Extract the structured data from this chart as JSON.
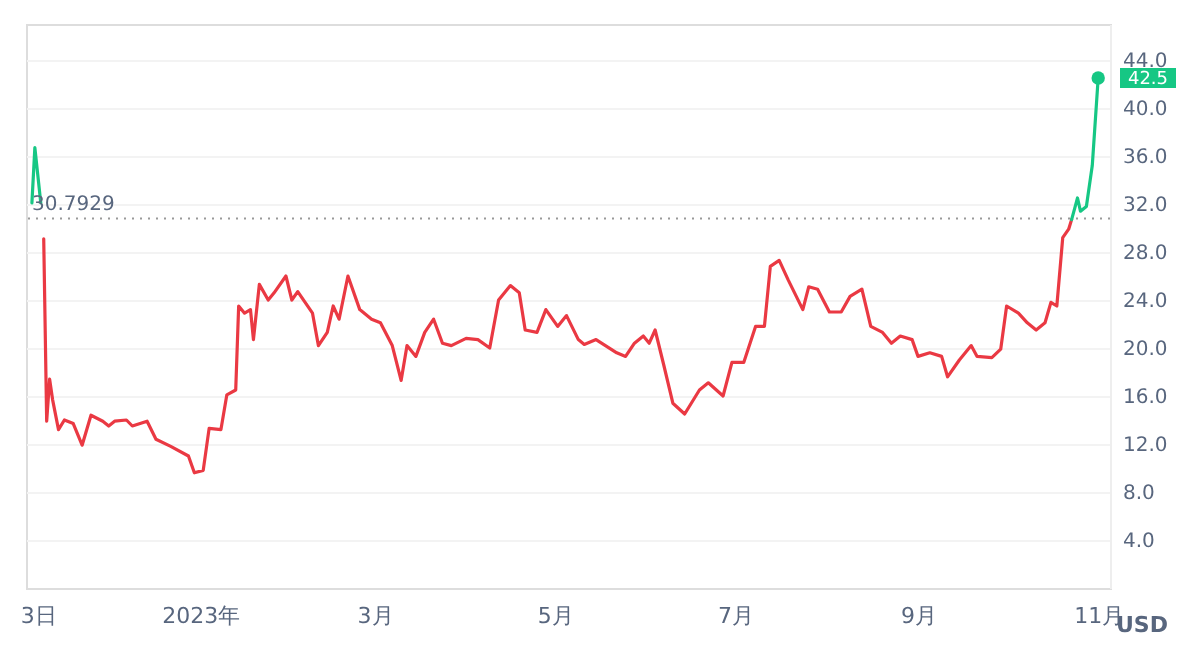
{
  "chart_data": {
    "type": "line",
    "ylabel": "USD",
    "x": [
      "2022-11-05",
      "2022-11-06",
      "2022-11-08",
      "2022-11-09",
      "2022-11-10",
      "2022-11-11",
      "2022-11-12",
      "2022-11-14",
      "2022-11-16",
      "2022-11-19",
      "2022-11-22",
      "2022-11-25",
      "2022-11-29",
      "2022-12-01",
      "2022-12-03",
      "2022-12-07",
      "2022-12-09",
      "2022-12-14",
      "2022-12-17",
      "2022-12-22",
      "2022-12-28",
      "2022-12-30",
      "2023-01-02",
      "2023-01-04",
      "2023-01-08",
      "2023-01-10",
      "2023-01-13",
      "2023-01-14",
      "2023-01-16",
      "2023-01-18",
      "2023-01-19",
      "2023-01-21",
      "2023-01-24",
      "2023-01-26",
      "2023-01-30",
      "2023-02-01",
      "2023-02-03",
      "2023-02-08",
      "2023-02-10",
      "2023-02-13",
      "2023-02-15",
      "2023-02-17",
      "2023-02-20",
      "2023-02-24",
      "2023-02-28",
      "2023-03-03",
      "2023-03-07",
      "2023-03-10",
      "2023-03-12",
      "2023-03-15",
      "2023-03-18",
      "2023-03-21",
      "2023-03-24",
      "2023-03-27",
      "2023-04-01",
      "2023-04-05",
      "2023-04-09",
      "2023-04-12",
      "2023-04-16",
      "2023-04-19",
      "2023-04-21",
      "2023-04-25",
      "2023-04-28",
      "2023-05-02",
      "2023-05-05",
      "2023-05-09",
      "2023-05-11",
      "2023-05-15",
      "2023-05-22",
      "2023-05-25",
      "2023-05-28",
      "2023-05-31",
      "2023-06-02",
      "2023-06-04",
      "2023-06-07",
      "2023-06-10",
      "2023-06-14",
      "2023-06-19",
      "2023-06-22",
      "2023-06-27",
      "2023-06-30",
      "2023-07-04",
      "2023-07-08",
      "2023-07-11",
      "2023-07-13",
      "2023-07-16",
      "2023-07-19",
      "2023-07-24",
      "2023-07-26",
      "2023-07-29",
      "2023-08-02",
      "2023-08-06",
      "2023-08-09",
      "2023-08-13",
      "2023-08-16",
      "2023-08-20",
      "2023-08-23",
      "2023-08-26",
      "2023-08-30",
      "2023-09-01",
      "2023-09-05",
      "2023-09-09",
      "2023-09-11",
      "2023-09-15",
      "2023-09-19",
      "2023-09-21",
      "2023-09-26",
      "2023-09-29",
      "2023-10-01",
      "2023-10-05",
      "2023-10-08",
      "2023-10-11",
      "2023-10-14",
      "2023-10-16",
      "2023-10-18",
      "2023-10-20",
      "2023-10-22",
      "2023-10-23",
      "2023-10-24",
      "2023-10-25",
      "2023-10-26",
      "2023-10-28",
      "2023-10-30",
      "2023-11-01"
    ],
    "series": [
      {
        "color": "#ea3943",
        "values": [
          null,
          null,
          null,
          29.1,
          13.9,
          17.4,
          15.7,
          13.2,
          14.0,
          13.7,
          11.9,
          14.4,
          13.9,
          13.5,
          13.9,
          14.0,
          13.5,
          13.9,
          12.4,
          11.8,
          11.0,
          9.6,
          9.8,
          13.3,
          13.2,
          16.1,
          16.5,
          23.5,
          22.9,
          23.2,
          20.7,
          25.3,
          24.0,
          24.6,
          26.0,
          24.0,
          24.7,
          22.9,
          20.2,
          21.3,
          23.5,
          22.4,
          26.0,
          23.2,
          22.4,
          22.1,
          20.2,
          17.3,
          20.2,
          19.3,
          21.3,
          22.4,
          20.4,
          20.2,
          20.8,
          20.7,
          20.0,
          24.0,
          25.2,
          24.6,
          21.5,
          21.3,
          23.2,
          21.8,
          22.7,
          20.7,
          20.3,
          20.7,
          19.6,
          19.3,
          20.4,
          21.0,
          20.4,
          21.5,
          18.5,
          15.4,
          14.5,
          16.5,
          17.1,
          16.0,
          18.8,
          18.8,
          21.8,
          21.8,
          26.8,
          27.3,
          25.7,
          23.2,
          25.1,
          24.9,
          23.0,
          23.0,
          24.3,
          24.9,
          21.8,
          21.3,
          20.4,
          21.0,
          20.7,
          19.3,
          19.6,
          19.3,
          17.6,
          19.0,
          20.2,
          19.3,
          19.2,
          19.9,
          23.5,
          22.9,
          22.1,
          21.5,
          22.1,
          23.8,
          23.5,
          29.2,
          29.9,
          30.7,
          null,
          null,
          null,
          null,
          null,
          null
        ]
      },
      {
        "color": "#16c784",
        "values": [
          32.1,
          36.7,
          32.1,
          null,
          null,
          null,
          null,
          null,
          null,
          null,
          null,
          null,
          null,
          null,
          null,
          null,
          null,
          null,
          null,
          null,
          null,
          null,
          null,
          null,
          null,
          null,
          null,
          null,
          null,
          null,
          null,
          null,
          null,
          null,
          null,
          null,
          null,
          null,
          null,
          null,
          null,
          null,
          null,
          null,
          null,
          null,
          null,
          null,
          null,
          null,
          null,
          null,
          null,
          null,
          null,
          null,
          null,
          null,
          null,
          null,
          null,
          null,
          null,
          null,
          null,
          null,
          null,
          null,
          null,
          null,
          null,
          null,
          null,
          null,
          null,
          null,
          null,
          null,
          null,
          null,
          null,
          null,
          null,
          null,
          null,
          null,
          null,
          null,
          null,
          null,
          null,
          null,
          null,
          null,
          null,
          null,
          null,
          null,
          null,
          null,
          null,
          null,
          null,
          null,
          null,
          null,
          null,
          null,
          null,
          null,
          null,
          null,
          null,
          null,
          null,
          null,
          null,
          30.7,
          31.6,
          32.5,
          31.4,
          31.8,
          35.2,
          42.5
        ]
      }
    ],
    "xlim": [
      "2022-11-03",
      "2023-11-05"
    ],
    "xticks": [
      {
        "value": "2022-11-07",
        "label": "3日"
      },
      {
        "value": "2023-01-01",
        "label": "2023年"
      },
      {
        "value": "2023-03-01",
        "label": "3月"
      },
      {
        "value": "2023-05-01",
        "label": "5月"
      },
      {
        "value": "2023-07-01",
        "label": "7月"
      },
      {
        "value": "2023-09-01",
        "label": "9月"
      },
      {
        "value": "2023-11-01",
        "label": "11月"
      }
    ],
    "ylim": [
      0,
      47
    ],
    "yticks": [
      {
        "value": 4,
        "label": "4.0"
      },
      {
        "value": 8,
        "label": "8.0"
      },
      {
        "value": 12,
        "label": "12.0"
      },
      {
        "value": 16,
        "label": "16.0"
      },
      {
        "value": 20,
        "label": "20.0"
      },
      {
        "value": 24,
        "label": "24.0"
      },
      {
        "value": 28,
        "label": "28.0"
      },
      {
        "value": 32,
        "label": "32.0"
      },
      {
        "value": 36,
        "label": "36.0"
      },
      {
        "value": 40,
        "label": "40.0"
      },
      {
        "value": 44,
        "label": "44.0"
      }
    ],
    "ref_lines": [
      {
        "axis": "y",
        "value": 30.7929,
        "label": "30.7929",
        "color": "#999999",
        "line_style": "dotted"
      }
    ],
    "annotations": [
      {
        "text": "42.5",
        "x": "2023-11-01",
        "y": 42.5
      }
    ],
    "grid": "y",
    "marker": "none",
    "line_style": "solid"
  }
}
